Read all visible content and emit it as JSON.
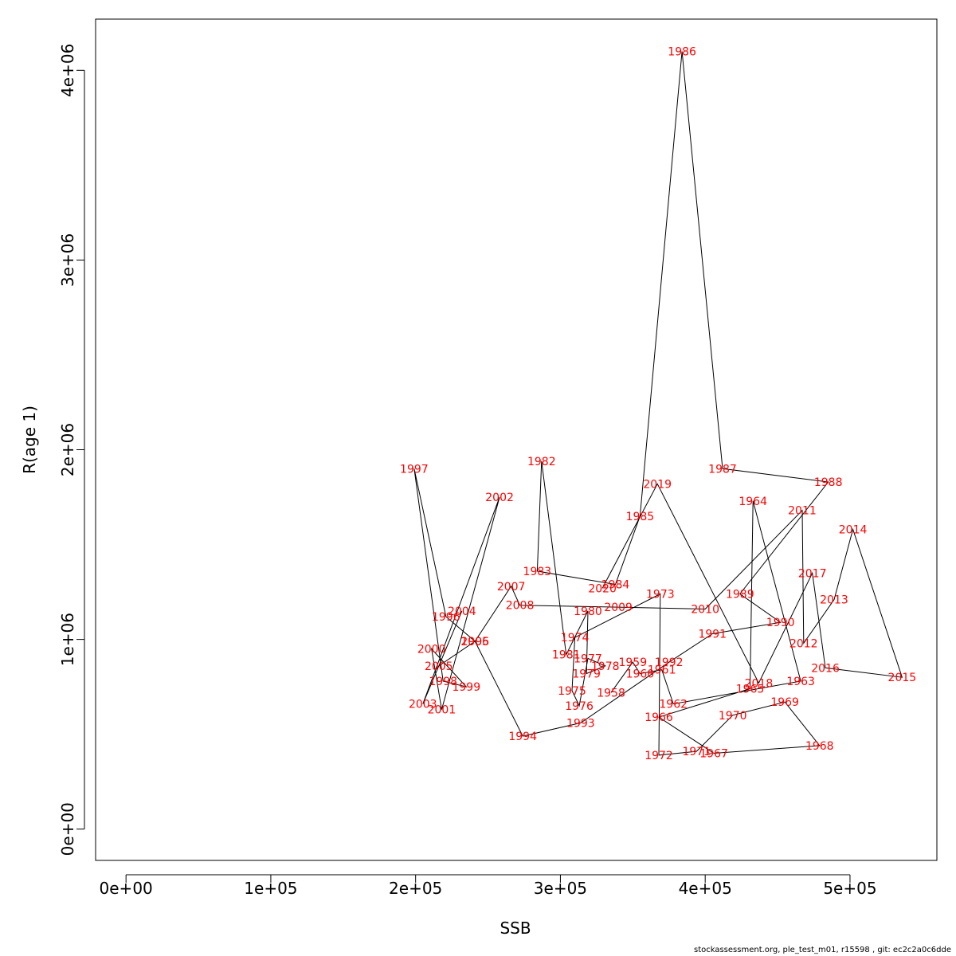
{
  "chart_data": {
    "type": "line",
    "xlabel": "SSB",
    "ylabel": "R(age 1)",
    "xlim": [
      -21000,
      560000
    ],
    "ylim": [
      -165000,
      4270000
    ],
    "xticks": [
      0,
      100000,
      200000,
      300000,
      400000,
      500000
    ],
    "xtick_labels": [
      "0e+00",
      "1e+05",
      "2e+05",
      "3e+05",
      "4e+05",
      "5e+05"
    ],
    "yticks": [
      0,
      1000000,
      2000000,
      3000000,
      4000000
    ],
    "ytick_labels": [
      "0e+00",
      "1e+06",
      "2e+06",
      "3e+06",
      "4e+06"
    ],
    "label_color": "#ff0000",
    "line_color": "#000000",
    "series": [
      {
        "points": [
          {
            "year": "1958",
            "x": 335000,
            "y": 720000
          },
          {
            "year": "1959",
            "x": 350000,
            "y": 880000
          },
          {
            "year": "1960",
            "x": 355000,
            "y": 820000
          },
          {
            "year": "1961",
            "x": 370000,
            "y": 840000
          },
          {
            "year": "1962",
            "x": 378000,
            "y": 660000
          },
          {
            "year": "1963",
            "x": 466000,
            "y": 780000
          },
          {
            "year": "1964",
            "x": 433000,
            "y": 1730000
          },
          {
            "year": "1965",
            "x": 431000,
            "y": 740000
          },
          {
            "year": "1966",
            "x": 368000,
            "y": 590000
          },
          {
            "year": "1967",
            "x": 406000,
            "y": 400000
          },
          {
            "year": "1968",
            "x": 479000,
            "y": 440000
          },
          {
            "year": "1969",
            "x": 455000,
            "y": 670000
          },
          {
            "year": "1970",
            "x": 419000,
            "y": 600000
          },
          {
            "year": "1971",
            "x": 394000,
            "y": 410000
          },
          {
            "year": "1972",
            "x": 368000,
            "y": 390000
          },
          {
            "year": "1973",
            "x": 369000,
            "y": 1240000
          },
          {
            "year": "1974",
            "x": 310000,
            "y": 1010000
          },
          {
            "year": "1975",
            "x": 308000,
            "y": 730000
          },
          {
            "year": "1976",
            "x": 313000,
            "y": 650000
          },
          {
            "year": "1977",
            "x": 319000,
            "y": 900000
          },
          {
            "year": "1978",
            "x": 331000,
            "y": 860000
          },
          {
            "year": "1979",
            "x": 318000,
            "y": 820000
          },
          {
            "year": "1980",
            "x": 319000,
            "y": 1150000
          },
          {
            "year": "1981",
            "x": 304000,
            "y": 920000
          },
          {
            "year": "1982",
            "x": 287000,
            "y": 1940000
          },
          {
            "year": "1983",
            "x": 284000,
            "y": 1360000
          },
          {
            "year": "1984",
            "x": 338000,
            "y": 1290000
          },
          {
            "year": "1985",
            "x": 355000,
            "y": 1650000
          },
          {
            "year": "1986",
            "x": 384000,
            "y": 4100000
          },
          {
            "year": "1987",
            "x": 412000,
            "y": 1900000
          },
          {
            "year": "1988",
            "x": 485000,
            "y": 1830000
          },
          {
            "year": "1989",
            "x": 424000,
            "y": 1240000
          },
          {
            "year": "1990",
            "x": 452000,
            "y": 1090000
          },
          {
            "year": "1991",
            "x": 405000,
            "y": 1030000
          },
          {
            "year": "1992",
            "x": 375000,
            "y": 880000
          },
          {
            "year": "1993",
            "x": 314000,
            "y": 560000
          },
          {
            "year": "1994",
            "x": 274000,
            "y": 490000
          },
          {
            "year": "1995",
            "x": 241000,
            "y": 990000
          },
          {
            "year": "1996",
            "x": 221000,
            "y": 1120000
          },
          {
            "year": "1997",
            "x": 199000,
            "y": 1900000
          },
          {
            "year": "1998",
            "x": 219000,
            "y": 780000
          },
          {
            "year": "1999",
            "x": 235000,
            "y": 750000
          },
          {
            "year": "2000",
            "x": 211000,
            "y": 950000
          },
          {
            "year": "2001",
            "x": 218000,
            "y": 630000
          },
          {
            "year": "2002",
            "x": 258000,
            "y": 1750000
          },
          {
            "year": "2003",
            "x": 205000,
            "y": 660000
          },
          {
            "year": "2004",
            "x": 232000,
            "y": 1150000
          },
          {
            "year": "2005",
            "x": 216000,
            "y": 860000
          },
          {
            "year": "2006",
            "x": 241000,
            "y": 990000
          },
          {
            "year": "2007",
            "x": 266000,
            "y": 1280000
          },
          {
            "year": "2008",
            "x": 272000,
            "y": 1180000
          },
          {
            "year": "2009",
            "x": 340000,
            "y": 1170000
          },
          {
            "year": "2010",
            "x": 400000,
            "y": 1160000
          },
          {
            "year": "2011",
            "x": 467000,
            "y": 1680000
          },
          {
            "year": "2012",
            "x": 468000,
            "y": 980000
          },
          {
            "year": "2013",
            "x": 489000,
            "y": 1210000
          },
          {
            "year": "2014",
            "x": 502000,
            "y": 1580000
          },
          {
            "year": "2015",
            "x": 536000,
            "y": 800000
          },
          {
            "year": "2016",
            "x": 483000,
            "y": 850000
          },
          {
            "year": "2017",
            "x": 474000,
            "y": 1350000
          },
          {
            "year": "2018",
            "x": 437000,
            "y": 770000
          },
          {
            "year": "2019",
            "x": 367000,
            "y": 1820000
          },
          {
            "year": "2020",
            "x": 329000,
            "y": 1270000
          }
        ]
      }
    ]
  },
  "footer": "stockassessment.org, ple_test_m01, r15598 , git: ec2c2a0c6dde"
}
